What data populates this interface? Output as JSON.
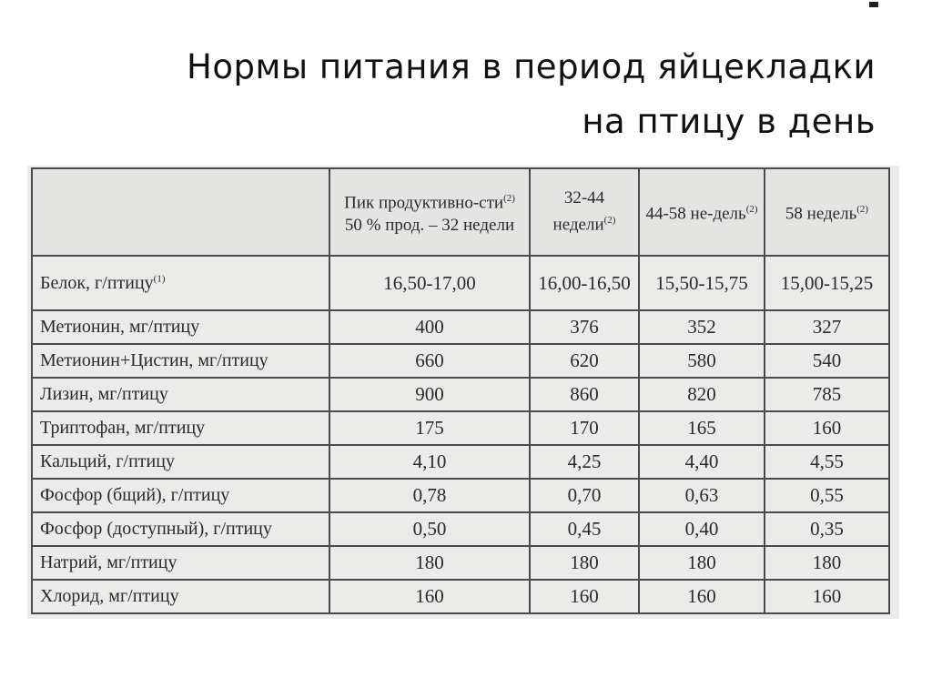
{
  "title": {
    "line1": "Нормы питания в период яйцекладки",
    "line2": "на птицу в день"
  },
  "table": {
    "headers": [
      {
        "text": "",
        "sup": ""
      },
      {
        "text": "Пик продуктивно-сти",
        "sup": "(2)",
        "rest": "50 % прод. – 32 недели"
      },
      {
        "text": "32-44 недели",
        "sup": "(2)"
      },
      {
        "text": "44-58 не-дель",
        "sup": "(2)"
      },
      {
        "text": "58 недель",
        "sup": "(2)"
      }
    ],
    "rows": [
      {
        "label": "Белок, г/птицу",
        "sup": "(1)",
        "values": [
          "16,50-17,00",
          "16,00-16,50",
          "15,50-15,75",
          "15,00-15,25"
        ]
      },
      {
        "label": "Метионин, мг/птицу",
        "values": [
          "400",
          "376",
          "352",
          "327"
        ]
      },
      {
        "label": "Метионин+Цистин, мг/птицу",
        "values": [
          "660",
          "620",
          "580",
          "540"
        ]
      },
      {
        "label": "Лизин, мг/птицу",
        "values": [
          "900",
          "860",
          "820",
          "785"
        ]
      },
      {
        "label": "Триптофан, мг/птицу",
        "values": [
          "175",
          "170",
          "165",
          "160"
        ]
      },
      {
        "label": "Кальций, г/птицу",
        "values": [
          "4,10",
          "4,25",
          "4,40",
          "4,55"
        ]
      },
      {
        "label": "Фосфор (бщий), г/птицу",
        "values": [
          "0,78",
          "0,70",
          "0,63",
          "0,55"
        ]
      },
      {
        "label": "Фосфор (доступный), г/птицу",
        "values": [
          "0,50",
          "0,45",
          "0,40",
          "0,35"
        ]
      },
      {
        "label": "Натрий, мг/птицу",
        "values": [
          "180",
          "180",
          "180",
          "180"
        ]
      },
      {
        "label": "Хлорид, мг/птицу",
        "values": [
          "160",
          "160",
          "160",
          "160"
        ]
      }
    ]
  }
}
